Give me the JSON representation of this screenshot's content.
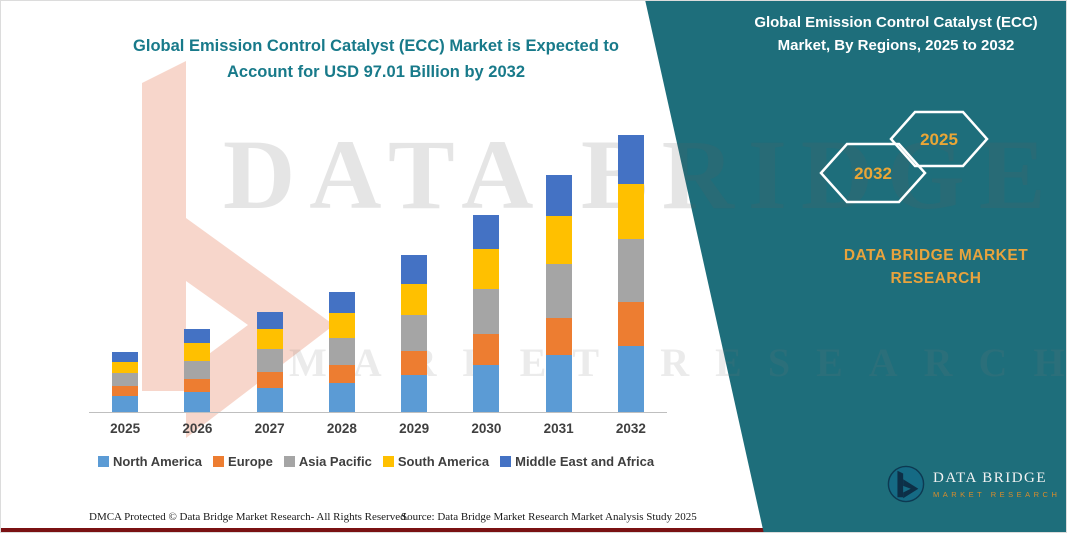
{
  "header": {
    "title_left": "Global Emission Control Catalyst (ECC) Market is Expected to Account for USD 97.01 Billion by 2032",
    "title_right": "Global Emission Control Catalyst (ECC) Market, By Regions, 2025 to 2032"
  },
  "badges": {
    "hex_left": "2032",
    "hex_right": "2025"
  },
  "brand": {
    "panel_line1": "DATA BRIDGE MARKET",
    "panel_line2": "RESEARCH",
    "logo_title": "DATA BRIDGE",
    "logo_subtitle": "MARKET RESEARCH"
  },
  "watermark": {
    "line1": "DATA BRIDGE",
    "line2": "MARKET RESEARCH"
  },
  "footer": {
    "dmca": "DMCA Protected © Data Bridge Market Research-  All Rights Reserved.",
    "source": "Source: Data Bridge Market Research  Market Analysis Study 2025"
  },
  "colors": {
    "panel_teal": "#1E6E7B",
    "title_teal": "#187A8A",
    "accent_orange": "#E8A33D",
    "bottom_line": "#7A1113"
  },
  "chart_data": {
    "type": "bar",
    "stacked": true,
    "title": "Global Emission Control Catalyst (ECC) Market, By Regions, 2025 to 2032",
    "unit": "USD Billion",
    "total_2032": 97.01,
    "categories": [
      "2025",
      "2026",
      "2027",
      "2028",
      "2029",
      "2030",
      "2031",
      "2032"
    ],
    "series": [
      {
        "name": "North America",
        "color": "#5B9BD5",
        "values": [
          5.5,
          7.0,
          8.5,
          10.0,
          13.0,
          16.5,
          20.0,
          23.0
        ]
      },
      {
        "name": "Europe",
        "color": "#ED7D31",
        "values": [
          3.5,
          4.5,
          5.5,
          6.5,
          8.5,
          11.0,
          13.0,
          15.5
        ]
      },
      {
        "name": "Asia Pacific",
        "color": "#A5A5A5",
        "values": [
          4.5,
          6.5,
          8.0,
          9.5,
          12.5,
          15.5,
          19.0,
          22.0
        ]
      },
      {
        "name": "South America",
        "color": "#FFC000",
        "values": [
          4.0,
          6.0,
          7.0,
          8.5,
          11.0,
          14.0,
          16.5,
          19.5
        ]
      },
      {
        "name": "Middle East and Africa",
        "color": "#4472C4",
        "values": [
          3.5,
          5.0,
          6.0,
          7.5,
          10.0,
          12.0,
          14.5,
          17.0
        ]
      }
    ],
    "legend_position": "bottom",
    "grid": false,
    "ylim": [
      0,
      100
    ]
  }
}
